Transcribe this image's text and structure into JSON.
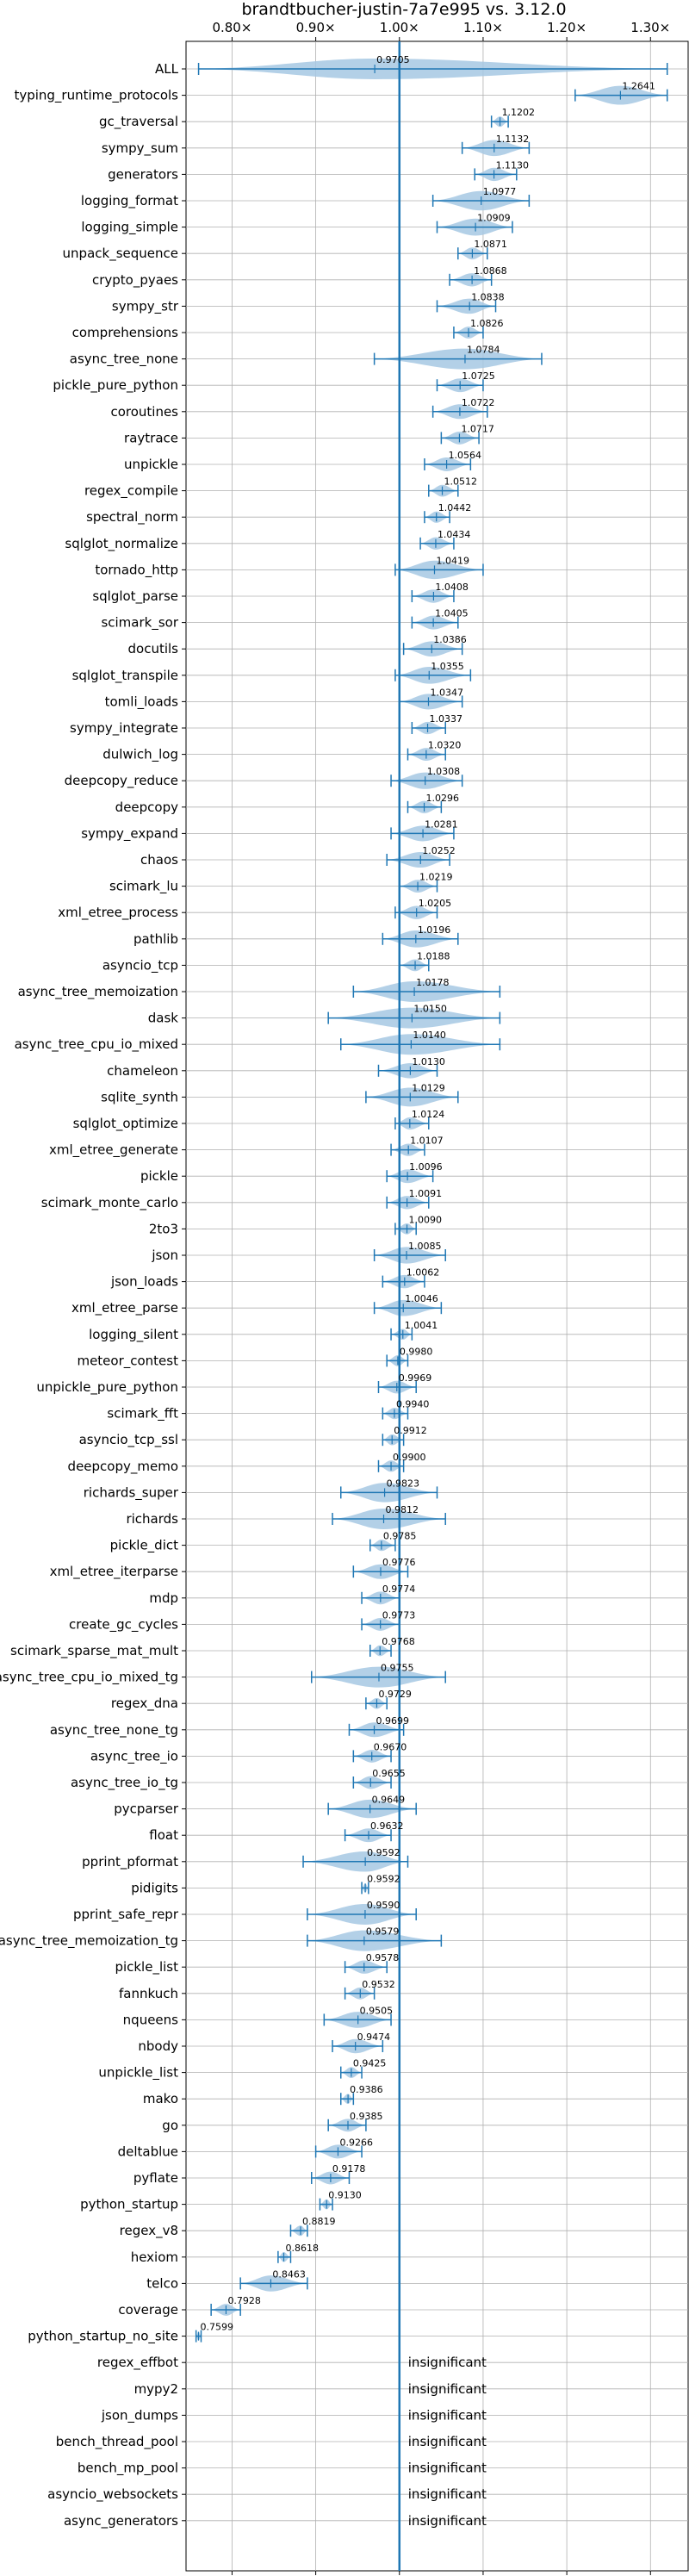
{
  "chart_data": {
    "type": "violin",
    "title": "brandtbucher-justin-7a7e995 vs. 3.12.0",
    "xlabel": "",
    "ylabel": "",
    "xlim": [
      0.745,
      1.345
    ],
    "xticks": [
      0.8,
      0.9,
      1.0,
      1.1,
      1.2,
      1.3
    ],
    "xtick_labels": [
      "0.80×",
      "0.90×",
      "1.00×",
      "1.10×",
      "1.20×",
      "1.30×"
    ],
    "xticks_top": true,
    "grid": true,
    "reference_line": 1.0,
    "colors": {
      "violin": "#a6c8e3",
      "line": "#1f77b4",
      "grid": "#b0b0b0"
    },
    "insignificant_label": "insignificant",
    "benchmarks": [
      {
        "name": "ALL",
        "value": 0.9705,
        "min": 0.76,
        "max": 1.32,
        "label": "0.9705"
      },
      {
        "name": "typing_runtime_protocols",
        "value": 1.2641,
        "min": 1.21,
        "max": 1.32,
        "label": "1.2641"
      },
      {
        "name": "gc_traversal",
        "value": 1.1202,
        "min": 1.11,
        "max": 1.13,
        "label": "1.1202"
      },
      {
        "name": "sympy_sum",
        "value": 1.1132,
        "min": 1.075,
        "max": 1.155,
        "label": "1.1132"
      },
      {
        "name": "generators",
        "value": 1.113,
        "min": 1.09,
        "max": 1.14,
        "label": "1.1130"
      },
      {
        "name": "logging_format",
        "value": 1.0977,
        "min": 1.04,
        "max": 1.155,
        "label": "1.0977"
      },
      {
        "name": "logging_simple",
        "value": 1.0909,
        "min": 1.045,
        "max": 1.135,
        "label": "1.0909"
      },
      {
        "name": "unpack_sequence",
        "value": 1.0871,
        "min": 1.07,
        "max": 1.105,
        "label": "1.0871"
      },
      {
        "name": "crypto_pyaes",
        "value": 1.0868,
        "min": 1.06,
        "max": 1.11,
        "label": "1.0868"
      },
      {
        "name": "sympy_str",
        "value": 1.0838,
        "min": 1.045,
        "max": 1.115,
        "label": "1.0838"
      },
      {
        "name": "comprehensions",
        "value": 1.0826,
        "min": 1.065,
        "max": 1.1,
        "label": "1.0826"
      },
      {
        "name": "async_tree_none",
        "value": 1.0784,
        "min": 0.97,
        "max": 1.17,
        "label": "1.0784"
      },
      {
        "name": "pickle_pure_python",
        "value": 1.0725,
        "min": 1.045,
        "max": 1.1,
        "label": "1.0725"
      },
      {
        "name": "coroutines",
        "value": 1.0722,
        "min": 1.04,
        "max": 1.105,
        "label": "1.0722"
      },
      {
        "name": "raytrace",
        "value": 1.0717,
        "min": 1.05,
        "max": 1.095,
        "label": "1.0717"
      },
      {
        "name": "unpickle",
        "value": 1.0564,
        "min": 1.03,
        "max": 1.085,
        "label": "1.0564"
      },
      {
        "name": "regex_compile",
        "value": 1.0512,
        "min": 1.035,
        "max": 1.07,
        "label": "1.0512"
      },
      {
        "name": "spectral_norm",
        "value": 1.0442,
        "min": 1.03,
        "max": 1.06,
        "label": "1.0442"
      },
      {
        "name": "sqlglot_normalize",
        "value": 1.0434,
        "min": 1.025,
        "max": 1.065,
        "label": "1.0434"
      },
      {
        "name": "tornado_http",
        "value": 1.0419,
        "min": 0.995,
        "max": 1.1,
        "label": "1.0419"
      },
      {
        "name": "sqlglot_parse",
        "value": 1.0408,
        "min": 1.015,
        "max": 1.065,
        "label": "1.0408"
      },
      {
        "name": "scimark_sor",
        "value": 1.0405,
        "min": 1.015,
        "max": 1.07,
        "label": "1.0405"
      },
      {
        "name": "docutils",
        "value": 1.0386,
        "min": 1.005,
        "max": 1.075,
        "label": "1.0386"
      },
      {
        "name": "sqlglot_transpile",
        "value": 1.0355,
        "min": 0.995,
        "max": 1.085,
        "label": "1.0355"
      },
      {
        "name": "tomli_loads",
        "value": 1.0347,
        "min": 1.0,
        "max": 1.075,
        "label": "1.0347"
      },
      {
        "name": "sympy_integrate",
        "value": 1.0337,
        "min": 1.015,
        "max": 1.055,
        "label": "1.0337"
      },
      {
        "name": "dulwich_log",
        "value": 1.032,
        "min": 1.01,
        "max": 1.055,
        "label": "1.0320"
      },
      {
        "name": "deepcopy_reduce",
        "value": 1.0308,
        "min": 0.99,
        "max": 1.075,
        "label": "1.0308"
      },
      {
        "name": "deepcopy",
        "value": 1.0296,
        "min": 1.01,
        "max": 1.05,
        "label": "1.0296"
      },
      {
        "name": "sympy_expand",
        "value": 1.0281,
        "min": 0.99,
        "max": 1.065,
        "label": "1.0281"
      },
      {
        "name": "chaos",
        "value": 1.0252,
        "min": 0.985,
        "max": 1.06,
        "label": "1.0252"
      },
      {
        "name": "scimark_lu",
        "value": 1.0219,
        "min": 1.0,
        "max": 1.045,
        "label": "1.0219"
      },
      {
        "name": "xml_etree_process",
        "value": 1.0205,
        "min": 0.995,
        "max": 1.045,
        "label": "1.0205"
      },
      {
        "name": "pathlib",
        "value": 1.0196,
        "min": 0.98,
        "max": 1.07,
        "label": "1.0196"
      },
      {
        "name": "asyncio_tcp",
        "value": 1.0188,
        "min": 1.0,
        "max": 1.035,
        "label": "1.0188"
      },
      {
        "name": "async_tree_memoization",
        "value": 1.0178,
        "min": 0.945,
        "max": 1.12,
        "label": "1.0178"
      },
      {
        "name": "dask",
        "value": 1.015,
        "min": 0.915,
        "max": 1.12,
        "label": "1.0150"
      },
      {
        "name": "async_tree_cpu_io_mixed",
        "value": 1.014,
        "min": 0.93,
        "max": 1.12,
        "label": "1.0140"
      },
      {
        "name": "chameleon",
        "value": 1.013,
        "min": 0.975,
        "max": 1.045,
        "label": "1.0130"
      },
      {
        "name": "sqlite_synth",
        "value": 1.0129,
        "min": 0.96,
        "max": 1.07,
        "label": "1.0129"
      },
      {
        "name": "sqlglot_optimize",
        "value": 1.0124,
        "min": 0.995,
        "max": 1.035,
        "label": "1.0124"
      },
      {
        "name": "xml_etree_generate",
        "value": 1.0107,
        "min": 0.99,
        "max": 1.03,
        "label": "1.0107"
      },
      {
        "name": "pickle",
        "value": 1.0096,
        "min": 0.985,
        "max": 1.04,
        "label": "1.0096"
      },
      {
        "name": "scimark_monte_carlo",
        "value": 1.0091,
        "min": 0.985,
        "max": 1.035,
        "label": "1.0091"
      },
      {
        "name": "2to3",
        "value": 1.009,
        "min": 0.995,
        "max": 1.02,
        "label": "1.0090"
      },
      {
        "name": "json",
        "value": 1.0085,
        "min": 0.97,
        "max": 1.055,
        "label": "1.0085"
      },
      {
        "name": "json_loads",
        "value": 1.0062,
        "min": 0.98,
        "max": 1.03,
        "label": "1.0062"
      },
      {
        "name": "xml_etree_parse",
        "value": 1.0046,
        "min": 0.97,
        "max": 1.05,
        "label": "1.0046"
      },
      {
        "name": "logging_silent",
        "value": 1.0041,
        "min": 0.99,
        "max": 1.015,
        "label": "1.0041"
      },
      {
        "name": "meteor_contest",
        "value": 0.998,
        "min": 0.985,
        "max": 1.01,
        "label": "0.9980"
      },
      {
        "name": "unpickle_pure_python",
        "value": 0.9969,
        "min": 0.975,
        "max": 1.02,
        "label": "0.9969"
      },
      {
        "name": "scimark_fft",
        "value": 0.994,
        "min": 0.98,
        "max": 1.01,
        "label": "0.9940"
      },
      {
        "name": "asyncio_tcp_ssl",
        "value": 0.9912,
        "min": 0.98,
        "max": 1.005,
        "label": "0.9912"
      },
      {
        "name": "deepcopy_memo",
        "value": 0.99,
        "min": 0.975,
        "max": 1.005,
        "label": "0.9900"
      },
      {
        "name": "richards_super",
        "value": 0.9823,
        "min": 0.93,
        "max": 1.045,
        "label": "0.9823"
      },
      {
        "name": "richards",
        "value": 0.9812,
        "min": 0.92,
        "max": 1.055,
        "label": "0.9812"
      },
      {
        "name": "pickle_dict",
        "value": 0.9785,
        "min": 0.965,
        "max": 0.995,
        "label": "0.9785"
      },
      {
        "name": "xml_etree_iterparse",
        "value": 0.9776,
        "min": 0.945,
        "max": 1.01,
        "label": "0.9776"
      },
      {
        "name": "mdp",
        "value": 0.9774,
        "min": 0.955,
        "max": 1.0,
        "label": "0.9774"
      },
      {
        "name": "create_gc_cycles",
        "value": 0.9773,
        "min": 0.955,
        "max": 1.0,
        "label": "0.9773"
      },
      {
        "name": "scimark_sparse_mat_mult",
        "value": 0.9768,
        "min": 0.965,
        "max": 0.99,
        "label": "0.9768"
      },
      {
        "name": "async_tree_cpu_io_mixed_tg",
        "value": 0.9755,
        "min": 0.895,
        "max": 1.055,
        "label": "0.9755"
      },
      {
        "name": "regex_dna",
        "value": 0.9729,
        "min": 0.96,
        "max": 0.985,
        "label": "0.9729"
      },
      {
        "name": "async_tree_none_tg",
        "value": 0.9699,
        "min": 0.94,
        "max": 1.005,
        "label": "0.9699"
      },
      {
        "name": "async_tree_io",
        "value": 0.967,
        "min": 0.945,
        "max": 0.99,
        "label": "0.9670"
      },
      {
        "name": "async_tree_io_tg",
        "value": 0.9655,
        "min": 0.945,
        "max": 0.99,
        "label": "0.9655"
      },
      {
        "name": "pycparser",
        "value": 0.9649,
        "min": 0.915,
        "max": 1.02,
        "label": "0.9649"
      },
      {
        "name": "float",
        "value": 0.9632,
        "min": 0.935,
        "max": 0.99,
        "label": "0.9632"
      },
      {
        "name": "pprint_pformat",
        "value": 0.9592,
        "min": 0.885,
        "max": 1.01,
        "label": "0.9592"
      },
      {
        "name": "pidigits",
        "value": 0.9592,
        "min": 0.955,
        "max": 0.963,
        "label": "0.9592"
      },
      {
        "name": "pprint_safe_repr",
        "value": 0.959,
        "min": 0.89,
        "max": 1.02,
        "label": "0.9590"
      },
      {
        "name": "async_tree_memoization_tg",
        "value": 0.9579,
        "min": 0.89,
        "max": 1.05,
        "label": "0.9579"
      },
      {
        "name": "pickle_list",
        "value": 0.9578,
        "min": 0.935,
        "max": 0.985,
        "label": "0.9578"
      },
      {
        "name": "fannkuch",
        "value": 0.9532,
        "min": 0.935,
        "max": 0.97,
        "label": "0.9532"
      },
      {
        "name": "nqueens",
        "value": 0.9505,
        "min": 0.91,
        "max": 0.99,
        "label": "0.9505"
      },
      {
        "name": "nbody",
        "value": 0.9474,
        "min": 0.92,
        "max": 0.98,
        "label": "0.9474"
      },
      {
        "name": "unpickle_list",
        "value": 0.9425,
        "min": 0.93,
        "max": 0.955,
        "label": "0.9425"
      },
      {
        "name": "mako",
        "value": 0.9386,
        "min": 0.93,
        "max": 0.945,
        "label": "0.9386"
      },
      {
        "name": "go",
        "value": 0.9385,
        "min": 0.915,
        "max": 0.96,
        "label": "0.9385"
      },
      {
        "name": "deltablue",
        "value": 0.9266,
        "min": 0.9,
        "max": 0.955,
        "label": "0.9266"
      },
      {
        "name": "pyflate",
        "value": 0.9178,
        "min": 0.895,
        "max": 0.94,
        "label": "0.9178"
      },
      {
        "name": "python_startup",
        "value": 0.913,
        "min": 0.905,
        "max": 0.92,
        "label": "0.9130"
      },
      {
        "name": "regex_v8",
        "value": 0.8819,
        "min": 0.87,
        "max": 0.89,
        "label": "0.8819"
      },
      {
        "name": "hexiom",
        "value": 0.8618,
        "min": 0.855,
        "max": 0.87,
        "label": "0.8618"
      },
      {
        "name": "telco",
        "value": 0.8463,
        "min": 0.81,
        "max": 0.89,
        "label": "0.8463"
      },
      {
        "name": "coverage",
        "value": 0.7928,
        "min": 0.775,
        "max": 0.81,
        "label": "0.7928"
      },
      {
        "name": "python_startup_no_site",
        "value": 0.7599,
        "min": 0.757,
        "max": 0.763,
        "label": "0.7599"
      },
      {
        "name": "regex_effbot",
        "insignificant": true
      },
      {
        "name": "mypy2",
        "insignificant": true
      },
      {
        "name": "json_dumps",
        "insignificant": true
      },
      {
        "name": "bench_thread_pool",
        "insignificant": true
      },
      {
        "name": "bench_mp_pool",
        "insignificant": true
      },
      {
        "name": "asyncio_websockets",
        "insignificant": true
      },
      {
        "name": "async_generators",
        "insignificant": true
      }
    ]
  }
}
